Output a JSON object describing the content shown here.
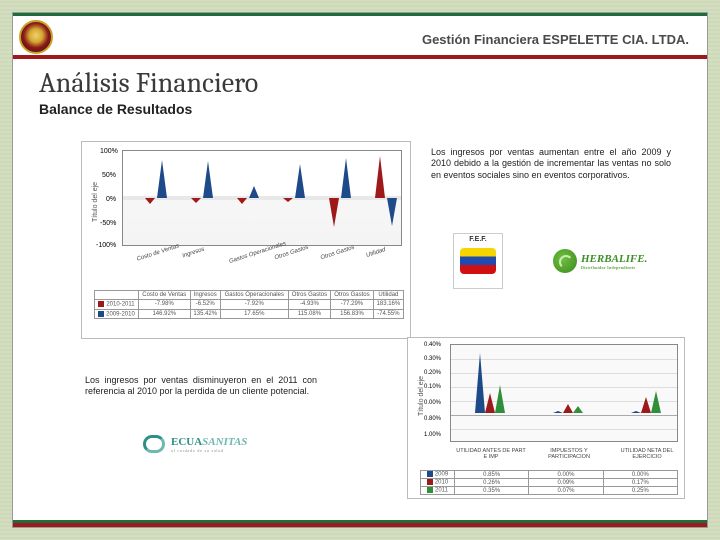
{
  "header": {
    "company": "Gestión Financiera ESPELETTE CIA. LTDA.",
    "border_top_color": "#1f6b3a",
    "border_bottom_color": "#9e1a1a"
  },
  "title": "Análisis Financiero",
  "subtitle": "Balance de Resultados",
  "paragraph1": "Los ingresos por ventas aumentan entre el año 2009 y 2010 debido a la gestión de incrementar las ventas no solo en eventos sociales sino en eventos corporativos.",
  "paragraph2": "Los ingresos por ventas disminuyeron en el 2011 con referencia al 2010 por la perdida de un cliente potencial.",
  "logos": {
    "fef": {
      "label": "F.E.F."
    },
    "herbalife": {
      "label": "HERBALIFE.",
      "tagline": "Distribuidor Independiente"
    },
    "ecuasanitas": {
      "label1": "ECUA",
      "label2": "SANITAS",
      "tagline": "al cuidado de su salud"
    }
  },
  "chart1": {
    "type": "cone-bar",
    "ylabel": "Título del eje",
    "yticks": [
      "100%",
      "50%",
      "0%",
      "-50%",
      "-100%"
    ],
    "categories": [
      "Costo de Ventas",
      "Ingresos",
      "Gastos Operacionales",
      "Otros Gastos",
      "Otros Gastos",
      "Utilidad"
    ],
    "series": [
      {
        "name": "2010-2011",
        "color": "#9e1a1a"
      },
      {
        "name": "2009-2010",
        "color": "#1f4a8a"
      }
    ],
    "rows": [
      [
        "2010-2011",
        "-7.98%",
        "-6.52%",
        "-7.92%",
        "-4.93%",
        "-77.29%",
        "183.16%"
      ],
      [
        "2009-2010",
        "146.92%",
        "135.42%",
        "17.65%",
        "115.08%",
        "156.83%",
        "-74.55%"
      ]
    ],
    "cones": [
      {
        "x": 28,
        "red": -6,
        "blue": 38
      },
      {
        "x": 74,
        "red": -5,
        "blue": 37
      },
      {
        "x": 120,
        "red": -6,
        "blue": 12
      },
      {
        "x": 166,
        "red": -4,
        "blue": 34
      },
      {
        "x": 212,
        "red": -29,
        "blue": 40
      },
      {
        "x": 258,
        "red": 42,
        "blue": -28
      }
    ]
  },
  "chart2": {
    "type": "cone-bar",
    "ylabel": "Título del eje",
    "yticks": [
      "0.40%",
      "0.30%",
      "0.20%",
      "0.10%",
      "0.00%",
      "0.80%",
      "1.00%"
    ],
    "categories": [
      "UTILIDAD ANTES DE PART E IMP",
      "IMPUESTOS Y PARTICIPACION",
      "UTILIDAD NETA DEL EJERCICIO"
    ],
    "series": [
      {
        "name": "2009",
        "color": "#1f4a8a"
      },
      {
        "name": "2010",
        "color": "#9e1a1a"
      },
      {
        "name": "2011",
        "color": "#2f8f3a"
      }
    ],
    "rows": [
      [
        "2009",
        "0.85%",
        "0.00%",
        "0.00%"
      ],
      [
        "2010",
        "0.26%",
        "0.09%",
        "0.17%"
      ],
      [
        "2011",
        "0.35%",
        "0.07%",
        "0.25%"
      ]
    ],
    "cones": [
      {
        "x": 34,
        "blue": 60,
        "red": 20,
        "green": 28
      },
      {
        "x": 112,
        "blue": 2,
        "red": 9,
        "green": 7
      },
      {
        "x": 190,
        "blue": 2,
        "red": 16,
        "green": 22
      }
    ]
  },
  "colors": {
    "red": "#9e1a1a",
    "blue": "#1f4a8a",
    "green": "#2f8f3a"
  }
}
